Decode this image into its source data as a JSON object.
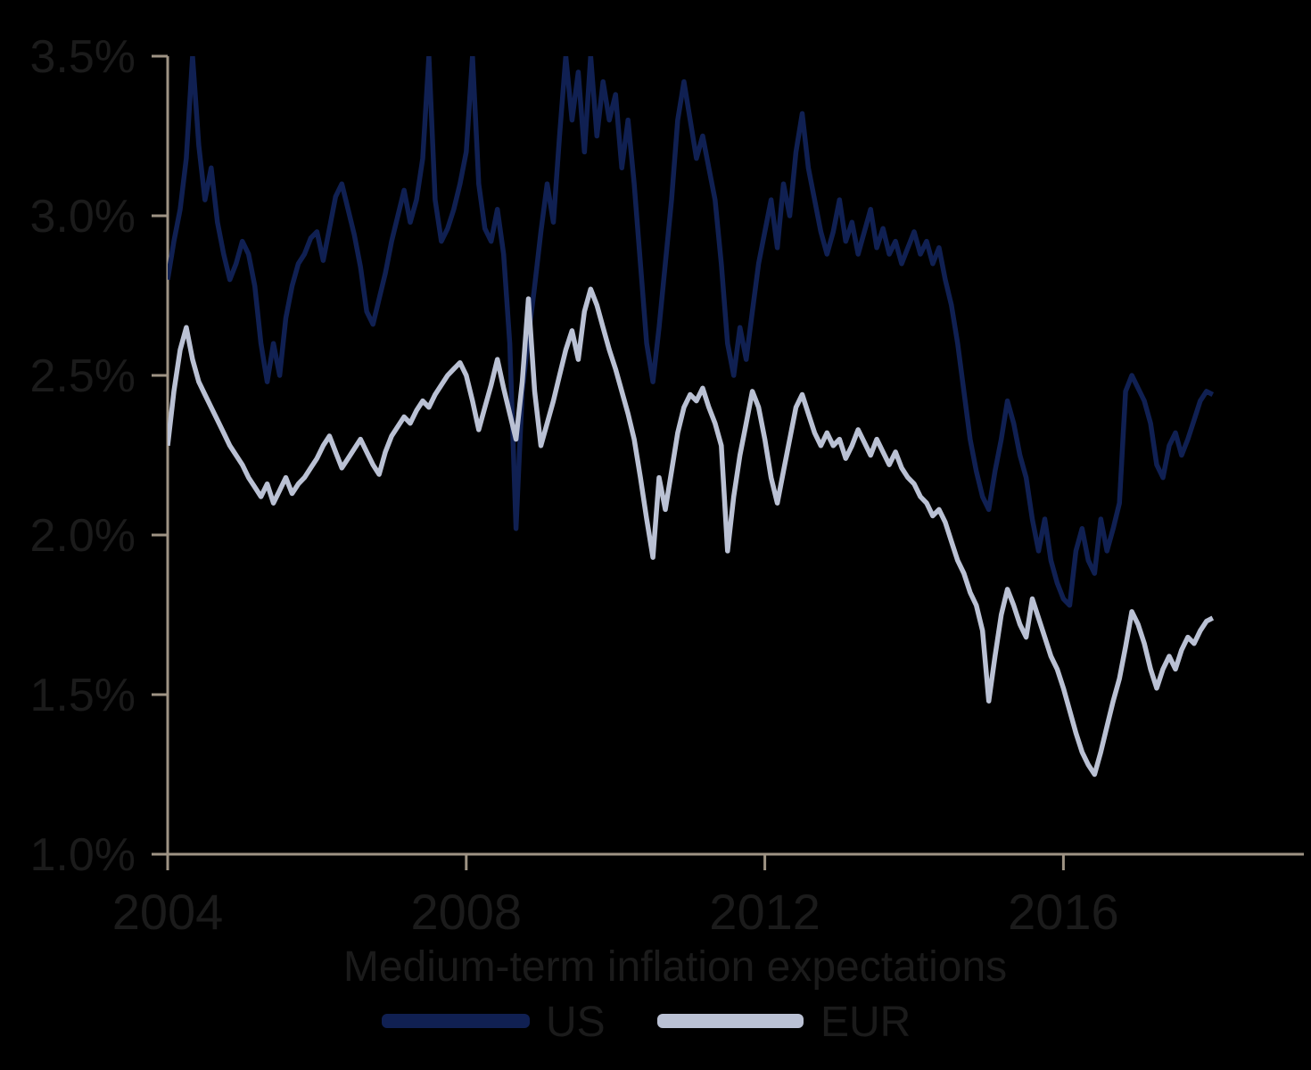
{
  "chart_data": {
    "type": "line",
    "title": "Medium-term inflation expectations",
    "xlabel": "",
    "ylabel": "",
    "x_start_year": 2004,
    "x_step_months": 1,
    "xlim": [
      2004,
      2019.2
    ],
    "ylim": [
      1.0,
      3.5
    ],
    "grid": false,
    "legend_position": "bottom",
    "xticks": [
      {
        "value": 2004,
        "label": "2004"
      },
      {
        "value": 2008,
        "label": "2008"
      },
      {
        "value": 2012,
        "label": "2012"
      },
      {
        "value": 2016,
        "label": "2016"
      }
    ],
    "yticks": [
      {
        "value": 1.0,
        "label": "1.0%"
      },
      {
        "value": 1.5,
        "label": "1.5%"
      },
      {
        "value": 2.0,
        "label": "2.0%"
      },
      {
        "value": 2.5,
        "label": "2.5%"
      },
      {
        "value": 3.0,
        "label": "3.0%"
      },
      {
        "value": 3.5,
        "label": "3.5%"
      }
    ],
    "series": [
      {
        "name": "US",
        "color": "#102052",
        "values": [
          2.8,
          2.92,
          3.02,
          3.18,
          3.5,
          3.22,
          3.05,
          3.15,
          2.98,
          2.88,
          2.8,
          2.85,
          2.92,
          2.88,
          2.78,
          2.6,
          2.48,
          2.6,
          2.5,
          2.68,
          2.78,
          2.85,
          2.88,
          2.93,
          2.95,
          2.86,
          2.96,
          3.06,
          3.1,
          3.02,
          2.94,
          2.84,
          2.7,
          2.66,
          2.74,
          2.82,
          2.92,
          3.0,
          3.08,
          2.98,
          3.05,
          3.18,
          3.5,
          3.05,
          2.92,
          2.96,
          3.02,
          3.1,
          3.2,
          3.5,
          3.1,
          2.96,
          2.92,
          3.02,
          2.88,
          2.6,
          2.02,
          2.45,
          2.62,
          2.78,
          2.95,
          3.1,
          2.98,
          3.25,
          3.5,
          3.3,
          3.45,
          3.2,
          3.5,
          3.25,
          3.42,
          3.3,
          3.38,
          3.15,
          3.3,
          3.1,
          2.85,
          2.6,
          2.48,
          2.65,
          2.85,
          3.05,
          3.3,
          3.42,
          3.3,
          3.18,
          3.25,
          3.15,
          3.05,
          2.85,
          2.6,
          2.5,
          2.65,
          2.55,
          2.7,
          2.85,
          2.95,
          3.05,
          2.9,
          3.1,
          3.0,
          3.2,
          3.32,
          3.15,
          3.05,
          2.95,
          2.88,
          2.95,
          3.05,
          2.92,
          2.98,
          2.88,
          2.95,
          3.02,
          2.9,
          2.96,
          2.88,
          2.92,
          2.85,
          2.9,
          2.95,
          2.88,
          2.92,
          2.85,
          2.9,
          2.8,
          2.72,
          2.6,
          2.45,
          2.3,
          2.2,
          2.12,
          2.08,
          2.2,
          2.3,
          2.42,
          2.35,
          2.25,
          2.18,
          2.05,
          1.95,
          2.05,
          1.92,
          1.85,
          1.8,
          1.78,
          1.95,
          2.02,
          1.92,
          1.88,
          2.05,
          1.95,
          2.02,
          2.1,
          2.45,
          2.5,
          2.46,
          2.42,
          2.35,
          2.22,
          2.18,
          2.28,
          2.32,
          2.25,
          2.3,
          2.36,
          2.42,
          2.45,
          2.44
        ]
      },
      {
        "name": "EUR",
        "color": "#bac1d4",
        "values": [
          2.28,
          2.45,
          2.58,
          2.65,
          2.55,
          2.48,
          2.44,
          2.4,
          2.36,
          2.32,
          2.28,
          2.25,
          2.22,
          2.18,
          2.15,
          2.12,
          2.16,
          2.1,
          2.14,
          2.18,
          2.13,
          2.16,
          2.18,
          2.21,
          2.24,
          2.28,
          2.31,
          2.26,
          2.21,
          2.24,
          2.27,
          2.3,
          2.26,
          2.22,
          2.19,
          2.26,
          2.31,
          2.34,
          2.37,
          2.35,
          2.39,
          2.42,
          2.4,
          2.44,
          2.47,
          2.5,
          2.52,
          2.54,
          2.5,
          2.42,
          2.33,
          2.4,
          2.47,
          2.55,
          2.46,
          2.38,
          2.3,
          2.48,
          2.74,
          2.45,
          2.28,
          2.35,
          2.42,
          2.5,
          2.58,
          2.64,
          2.55,
          2.7,
          2.77,
          2.72,
          2.65,
          2.58,
          2.52,
          2.45,
          2.38,
          2.3,
          2.18,
          2.05,
          1.93,
          2.18,
          2.08,
          2.2,
          2.32,
          2.4,
          2.44,
          2.42,
          2.46,
          2.4,
          2.35,
          2.28,
          1.95,
          2.12,
          2.25,
          2.35,
          2.45,
          2.4,
          2.3,
          2.18,
          2.1,
          2.2,
          2.3,
          2.4,
          2.44,
          2.38,
          2.32,
          2.28,
          2.32,
          2.28,
          2.3,
          2.24,
          2.28,
          2.33,
          2.29,
          2.25,
          2.3,
          2.26,
          2.22,
          2.26,
          2.21,
          2.18,
          2.16,
          2.12,
          2.1,
          2.06,
          2.08,
          2.04,
          1.98,
          1.92,
          1.88,
          1.82,
          1.78,
          1.7,
          1.48,
          1.62,
          1.75,
          1.83,
          1.78,
          1.72,
          1.68,
          1.8,
          1.74,
          1.68,
          1.62,
          1.58,
          1.52,
          1.45,
          1.38,
          1.32,
          1.28,
          1.25,
          1.32,
          1.4,
          1.48,
          1.55,
          1.65,
          1.76,
          1.72,
          1.66,
          1.58,
          1.52,
          1.58,
          1.62,
          1.58,
          1.64,
          1.68,
          1.66,
          1.7,
          1.73,
          1.74
        ]
      }
    ],
    "colors": {
      "axis": "#9e9384",
      "text": "#1b1b1b",
      "background": "#000000"
    }
  }
}
